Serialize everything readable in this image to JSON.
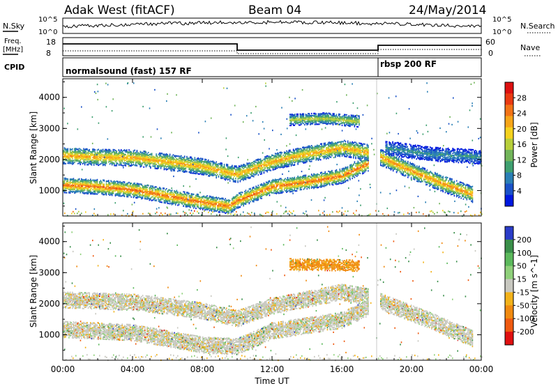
{
  "header": {
    "station": "Adak West (fitACF)",
    "beam": "Beam 04",
    "date": "24/May/2014"
  },
  "sky_panel": {
    "left_label": "N.Sky",
    "right_label": "N.Search",
    "tick_top": "10^5",
    "tick_bottom": "10^0"
  },
  "freq_panel": {
    "left_label_1": "Freq.",
    "left_label_2": "[MHz]",
    "left_tick_top": "18",
    "left_tick_bottom": "8",
    "right_label": "Nave",
    "right_tick_top": "60",
    "right_tick_bottom": "0"
  },
  "cpid": {
    "label": "CPID",
    "segments": [
      {
        "name": "normalsound (fast) 157 RF",
        "start_h": 0
      },
      {
        "name": "rbsp 200 RF",
        "start_h": 18
      }
    ]
  },
  "chart_data": [
    {
      "type": "heatmap",
      "title": "",
      "xlabel": "Time UT",
      "ylabel": "Slant Range [km]",
      "xlim": [
        0,
        24
      ],
      "ylim": [
        180,
        4600
      ],
      "x_ticks": [
        "00:00",
        "04:00",
        "08:00",
        "12:00",
        "16:00",
        "20:00",
        "00:00"
      ],
      "y_ticks": [
        "1000",
        "2000",
        "3000",
        "4000"
      ],
      "colorbar": {
        "label": "Power [dB]",
        "ticks": [
          "28",
          "24",
          "20",
          "16",
          "12",
          "8",
          "4"
        ],
        "colors": [
          "#0018e0",
          "#1a52c8",
          "#2a7fb5",
          "#3fa070",
          "#72b55a",
          "#b8cf3a",
          "#f5d21e",
          "#f6a518",
          "#f27316",
          "#ea3a12",
          "#dd1010"
        ]
      },
      "bands": [
        {
          "points": [
            [
              0,
              1200
            ],
            [
              2,
              1150
            ],
            [
              4,
              1050
            ],
            [
              6,
              850
            ],
            [
              8,
              650
            ],
            [
              9.5,
              520
            ],
            [
              10,
              700
            ],
            [
              12,
              1150
            ],
            [
              14,
              1300
            ],
            [
              16,
              1500
            ],
            [
              17.5,
              1900
            ]
          ],
          "width_km": 240,
          "peak_db": 27
        },
        {
          "points": [
            [
              0,
              2150
            ],
            [
              2,
              2100
            ],
            [
              4,
              2080
            ],
            [
              6,
              1950
            ],
            [
              8,
              1800
            ],
            [
              9.5,
              1600
            ],
            [
              10,
              1550
            ],
            [
              12,
              1950
            ],
            [
              14,
              2200
            ],
            [
              16,
              2400
            ],
            [
              17.5,
              2250
            ]
          ],
          "width_km": 260,
          "peak_db": 24
        },
        {
          "points": [
            [
              13,
              3300
            ],
            [
              15,
              3350
            ],
            [
              17,
              3250
            ]
          ],
          "width_km": 180,
          "peak_db": 18
        },
        {
          "points": [
            [
              18.2,
              2100
            ],
            [
              20,
              1650
            ],
            [
              22,
              1200
            ],
            [
              23.5,
              900
            ]
          ],
          "width_km": 260,
          "peak_db": 25
        },
        {
          "points": [
            [
              18.5,
              2400
            ],
            [
              21,
              2200
            ],
            [
              24,
              2100
            ]
          ],
          "width_km": 220,
          "peak_db": 10
        }
      ]
    },
    {
      "type": "heatmap",
      "title": "",
      "xlabel": "Time UT",
      "ylabel": "Slant Range [km]",
      "xlim": [
        0,
        24
      ],
      "ylim": [
        180,
        4600
      ],
      "x_ticks": [
        "00:00",
        "04:00",
        "08:00",
        "12:00",
        "16:00",
        "20:00",
        "00:00"
      ],
      "y_ticks": [
        "1000",
        "2000",
        "3000",
        "4000"
      ],
      "colorbar": {
        "label": "Velocity [m s^-1]",
        "ticks": [
          "200",
          "100",
          "50",
          "15",
          "-15",
          "-50",
          "-100",
          "-200"
        ],
        "colors": [
          "#2a3cc8",
          "#3a8f4a",
          "#5cb95c",
          "#8fd07a",
          "#c8c8c0",
          "#f2b21a",
          "#f08a10",
          "#ef5a10",
          "#e01010"
        ]
      },
      "bands": [
        {
          "points": [
            [
              0,
              1200
            ],
            [
              4,
              1100
            ],
            [
              8,
              700
            ],
            [
              10,
              650
            ],
            [
              12,
              1150
            ],
            [
              16,
              1500
            ],
            [
              17.5,
              1900
            ]
          ],
          "width_km": 260,
          "velocity": 0
        },
        {
          "points": [
            [
              0,
              2150
            ],
            [
              4,
              2080
            ],
            [
              8,
              1800
            ],
            [
              10,
              1550
            ],
            [
              12,
              1950
            ],
            [
              16,
              2400
            ],
            [
              17.5,
              2250
            ]
          ],
          "width_km": 260,
          "velocity": 0
        },
        {
          "points": [
            [
              13,
              3300
            ],
            [
              17,
              3250
            ]
          ],
          "width_km": 180,
          "velocity": -40
        },
        {
          "points": [
            [
              18.2,
              2100
            ],
            [
              21,
              1500
            ],
            [
              23.5,
              900
            ]
          ],
          "width_km": 260,
          "velocity": 0
        }
      ]
    }
  ]
}
